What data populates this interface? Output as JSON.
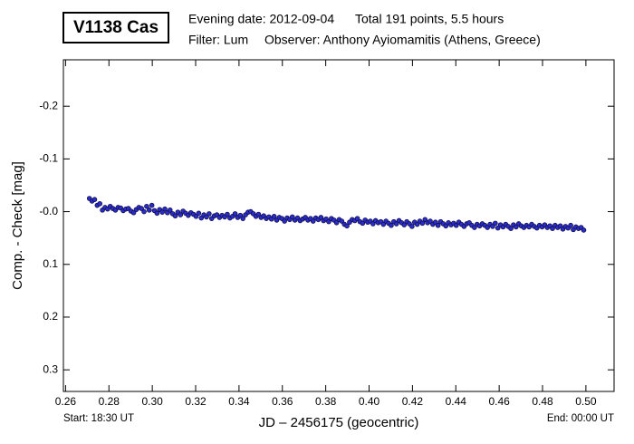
{
  "chart_data": {
    "type": "scatter",
    "title": "V1138 Cas",
    "evening_date": "Evening date: 2012-09-04",
    "total": "Total 191 points, 5.5 hours",
    "filter": "Filter: Lum",
    "observer": "Observer: Anthony Ayiomamitis (Athens, Greece)",
    "x_label": "JD – 2456175  (geocentric)",
    "y_label": "Comp. - Check [mag]",
    "start": "Start: 18:30 UT",
    "end": "End: 00:00 UT",
    "xlim": [
      0.259,
      0.513
    ],
    "ylim": [
      -0.288,
      0.341
    ],
    "y_inverted": true,
    "xticks": [
      0.26,
      0.28,
      {
        "value": 0.3,
        "label": "0.30"
      },
      0.32,
      0.34,
      0.36,
      0.38,
      {
        "value": 0.4,
        "label": "0.40"
      },
      0.42,
      0.44,
      0.46,
      0.48,
      {
        "value": 0.5,
        "label": "0.50"
      }
    ],
    "yticks": [
      -0.2,
      -0.1,
      {
        "value": 0,
        "label": "-0.0"
      },
      0.1,
      0.2,
      0.3
    ],
    "series": [
      {
        "color": "#2b2bd0",
        "x": [
          0.271,
          0.2722,
          0.2734,
          0.2746,
          0.2758,
          0.277,
          0.2782,
          0.2794,
          0.2806,
          0.2818,
          0.283,
          0.2842,
          0.2854,
          0.2866,
          0.2878,
          0.289,
          0.2902,
          0.2914,
          0.2926,
          0.2938,
          0.295,
          0.2962,
          0.2974,
          0.2986,
          0.2998,
          0.301,
          0.3022,
          0.3034,
          0.3046,
          0.3058,
          0.307,
          0.3082,
          0.3094,
          0.3106,
          0.3118,
          0.313,
          0.3142,
          0.3154,
          0.3166,
          0.3178,
          0.319,
          0.3202,
          0.3214,
          0.3226,
          0.3238,
          0.325,
          0.3262,
          0.3274,
          0.3286,
          0.3298,
          0.331,
          0.3322,
          0.3334,
          0.3346,
          0.3358,
          0.337,
          0.3382,
          0.3394,
          0.3406,
          0.3418,
          0.343,
          0.3442,
          0.3454,
          0.3466,
          0.3478,
          0.349,
          0.3502,
          0.3514,
          0.3526,
          0.3538,
          0.355,
          0.3562,
          0.3574,
          0.3586,
          0.3598,
          0.361,
          0.3622,
          0.3634,
          0.3646,
          0.3658,
          0.367,
          0.3682,
          0.3694,
          0.3706,
          0.3718,
          0.373,
          0.3742,
          0.3754,
          0.3766,
          0.3778,
          0.379,
          0.3802,
          0.3814,
          0.3826,
          0.3838,
          0.385,
          0.3862,
          0.3874,
          0.3886,
          0.3898,
          0.391,
          0.3922,
          0.3934,
          0.3946,
          0.3958,
          0.397,
          0.3982,
          0.3994,
          0.4006,
          0.4018,
          0.403,
          0.4042,
          0.4054,
          0.4066,
          0.4078,
          0.409,
          0.4102,
          0.4114,
          0.4126,
          0.4138,
          0.415,
          0.4162,
          0.4174,
          0.4186,
          0.4198,
          0.421,
          0.4222,
          0.4234,
          0.4246,
          0.4258,
          0.427,
          0.4282,
          0.4294,
          0.4306,
          0.4318,
          0.433,
          0.4342,
          0.4354,
          0.4366,
          0.4378,
          0.439,
          0.4402,
          0.4414,
          0.4426,
          0.4438,
          0.445,
          0.4462,
          0.4474,
          0.4486,
          0.4498,
          0.451,
          0.4522,
          0.4534,
          0.4546,
          0.4558,
          0.457,
          0.4582,
          0.4594,
          0.4606,
          0.4618,
          0.463,
          0.4642,
          0.4654,
          0.4666,
          0.4678,
          0.469,
          0.4702,
          0.4714,
          0.4726,
          0.4738,
          0.475,
          0.4762,
          0.4774,
          0.4786,
          0.4798,
          0.481,
          0.4822,
          0.4834,
          0.4846,
          0.4858,
          0.487,
          0.4882,
          0.4894,
          0.4906,
          0.4918,
          0.493,
          0.4942,
          0.4954,
          0.4966,
          0.4978,
          0.499
        ],
        "values": [
          -0.025,
          -0.02,
          -0.023,
          -0.012,
          -0.015,
          -0.003,
          -0.008,
          -0.005,
          -0.01,
          -0.006,
          -0.003,
          -0.008,
          -0.007,
          -0.002,
          -0.005,
          -0.006,
          -0.001,
          0.002,
          -0.004,
          -0.008,
          -0.006,
          0.0,
          -0.01,
          -0.003,
          -0.012,
          -0.002,
          0.003,
          -0.004,
          0.001,
          -0.005,
          0.002,
          -0.003,
          0.004,
          0.008,
          0.001,
          0.006,
          -0.001,
          0.003,
          0.007,
          0.002,
          0.005,
          0.009,
          0.003,
          0.012,
          0.006,
          0.01,
          0.004,
          0.013,
          0.008,
          0.006,
          0.011,
          0.007,
          0.01,
          0.005,
          0.012,
          0.009,
          0.004,
          0.011,
          0.007,
          0.013,
          0.006,
          0.001,
          0.0,
          0.004,
          0.009,
          0.005,
          0.011,
          0.008,
          0.013,
          0.01,
          0.014,
          0.009,
          0.016,
          0.011,
          0.013,
          0.018,
          0.012,
          0.015,
          0.01,
          0.016,
          0.012,
          0.017,
          0.014,
          0.011,
          0.016,
          0.013,
          0.018,
          0.012,
          0.015,
          0.011,
          0.017,
          0.014,
          0.019,
          0.013,
          0.016,
          0.021,
          0.015,
          0.018,
          0.024,
          0.027,
          0.02,
          0.015,
          0.017,
          0.013,
          0.019,
          0.022,
          0.016,
          0.02,
          0.018,
          0.023,
          0.017,
          0.021,
          0.019,
          0.024,
          0.018,
          0.022,
          0.026,
          0.019,
          0.023,
          0.017,
          0.021,
          0.025,
          0.019,
          0.023,
          0.028,
          0.02,
          0.024,
          0.018,
          0.022,
          0.015,
          0.021,
          0.018,
          0.024,
          0.02,
          0.026,
          0.019,
          0.023,
          0.027,
          0.021,
          0.025,
          0.022,
          0.026,
          0.02,
          0.024,
          0.028,
          0.023,
          0.021,
          0.026,
          0.03,
          0.024,
          0.027,
          0.023,
          0.026,
          0.03,
          0.024,
          0.028,
          0.022,
          0.031,
          0.025,
          0.029,
          0.024,
          0.028,
          0.032,
          0.025,
          0.029,
          0.023,
          0.027,
          0.03,
          0.026,
          0.029,
          0.024,
          0.028,
          0.031,
          0.026,
          0.029,
          0.025,
          0.03,
          0.027,
          0.032,
          0.026,
          0.03,
          0.027,
          0.033,
          0.028,
          0.031,
          0.026,
          0.034,
          0.029,
          0.032,
          0.03,
          0.035
        ]
      }
    ]
  }
}
